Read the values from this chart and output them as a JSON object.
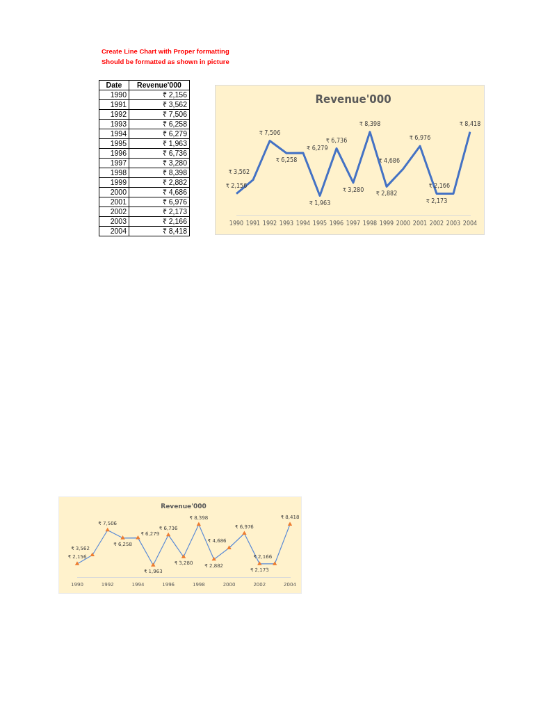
{
  "chart_data": [
    {
      "type": "line",
      "title": "Revenue'000",
      "annotations": [
        "Create Line Chart with Proper formatting",
        "Should be formatted as shown in picture",
        "Date",
        "Revenue'000"
      ],
      "categories": [
        "1990",
        "1991",
        "1992",
        "1993",
        "1994",
        "1995",
        "1996",
        "1997",
        "1998",
        "1999",
        "2000",
        "2001",
        "2002",
        "2003",
        "2004"
      ],
      "series": [
        {
          "color": "#4472c4",
          "values": [
            2156,
            3562,
            7506,
            6258,
            6279,
            1963,
            6736,
            3280,
            8398,
            2882,
            4686,
            6976,
            2173,
            2166,
            8418
          ],
          "value_labels": [
            "₹ 2,156",
            "₹ 3,562",
            "₹ 7,506",
            "₹ 6,258",
            "₹ 6,279",
            "₹ 1,963",
            "₹ 6,736",
            "₹ 3,280",
            "₹ 8,398",
            "₹ 2,882",
            "₹ 4,686",
            "₹ 6,976",
            "₹ 2,173",
            "₹ 2,166",
            "₹ 8,418"
          ]
        }
      ],
      "marker": "none",
      "grid": false,
      "legend": false,
      "tick_labels": "x"
    },
    {
      "type": "line",
      "title": "Revenue'000",
      "categories": [
        "1990",
        null,
        "1992",
        null,
        "1994",
        null,
        "1996",
        null,
        "1998",
        null,
        "2000",
        null,
        "2002",
        null,
        "2004"
      ],
      "series": [
        {
          "color": "#5b8bd6",
          "colors": [
            "#ed7d31",
            "#ed7d31",
            "#ed7d31",
            "#ed7d31",
            "#ed7d31",
            "#ed7d31",
            "#ed7d31",
            "#ed7d31",
            "#ed7d31",
            "#ed7d31",
            "#ed7d31",
            "#ed7d31",
            "#ed7d31",
            "#ed7d31",
            "#ed7d31"
          ],
          "values": [
            2156,
            3562,
            7506,
            6258,
            6279,
            1963,
            6736,
            3280,
            8398,
            2882,
            4686,
            6976,
            2173,
            2166,
            8418
          ],
          "value_labels": [
            "₹ 2,156",
            "₹ 3,562",
            "₹ 7,506",
            "₹ 6,258",
            "₹ 6,279",
            "₹ 1,963",
            "₹ 6,736",
            "₹ 3,280",
            "₹ 8,398",
            "₹ 2,882",
            "₹ 4,686",
            "₹ 6,976",
            "₹ 2,173",
            "₹ 2,166",
            "₹ 8,418"
          ]
        }
      ],
      "marker": "triangle",
      "grid": false,
      "legend": false,
      "tick_labels": "x"
    }
  ]
}
